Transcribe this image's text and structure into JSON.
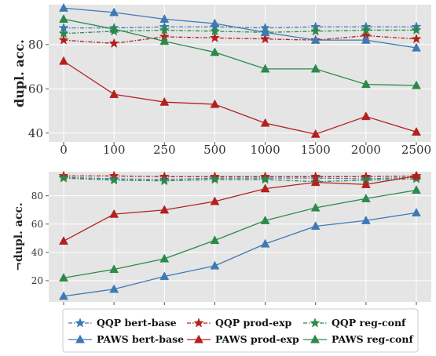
{
  "chart_data": [
    {
      "type": "line",
      "ylabel": "dupl. acc.",
      "categories": [
        "0",
        "100",
        "250",
        "500",
        "1000",
        "1500",
        "2000",
        "2500"
      ],
      "ylim": [
        36,
        98
      ],
      "yticks": [
        40,
        60,
        80
      ],
      "grid": true,
      "series": [
        {
          "name": "QQP bert-base",
          "color": "#3d7ab5",
          "marker": "star",
          "dashed": true,
          "values": [
            87.5,
            87.5,
            88,
            88,
            87.5,
            88,
            88,
            88
          ]
        },
        {
          "name": "QQP prod-exp",
          "color": "#b3211e",
          "marker": "star",
          "dashed": true,
          "values": [
            82,
            80.5,
            83.5,
            83,
            82.5,
            82,
            84,
            82.5
          ]
        },
        {
          "name": "QQP reg-conf",
          "color": "#2b8a4a",
          "marker": "star",
          "dashed": true,
          "values": [
            85,
            86,
            86.5,
            86,
            85.5,
            86,
            86.5,
            86.5
          ]
        },
        {
          "name": "PAWS bert-base",
          "color": "#3d7ab5",
          "marker": "triangle",
          "dashed": false,
          "values": [
            96.5,
            94.5,
            91.5,
            89.5,
            85.5,
            82,
            82,
            78.5
          ]
        },
        {
          "name": "PAWS prod-exp",
          "color": "#b3211e",
          "marker": "triangle",
          "dashed": false,
          "values": [
            72.5,
            57.5,
            54,
            53,
            44.5,
            39.5,
            47.5,
            40.5
          ]
        },
        {
          "name": "PAWS reg-conf",
          "color": "#2b8a4a",
          "marker": "triangle",
          "dashed": false,
          "values": [
            91.5,
            87,
            81.5,
            76.5,
            69,
            69,
            62,
            61.5
          ]
        }
      ]
    },
    {
      "type": "line",
      "ylabel": "¬dupl. acc.",
      "categories": [
        "0",
        "100",
        "250",
        "500",
        "1000",
        "1500",
        "2000",
        "2500"
      ],
      "ylim": [
        5,
        97
      ],
      "yticks": [
        20,
        40,
        60,
        80
      ],
      "grid": true,
      "series": [
        {
          "name": "QQP bert-base",
          "color": "#3d7ab5",
          "marker": "star",
          "dashed": true,
          "values": [
            93,
            92,
            91.5,
            92.5,
            92.5,
            92.5,
            92,
            93
          ]
        },
        {
          "name": "QQP prod-exp",
          "color": "#b3211e",
          "marker": "star",
          "dashed": true,
          "values": [
            94,
            94,
            93.5,
            93.5,
            93.5,
            93.5,
            93.5,
            94
          ]
        },
        {
          "name": "QQP reg-conf",
          "color": "#2b8a4a",
          "marker": "star",
          "dashed": true,
          "values": [
            92.5,
            91,
            90.5,
            91.5,
            91.5,
            90,
            91,
            92
          ]
        },
        {
          "name": "PAWS bert-base",
          "color": "#3d7ab5",
          "marker": "triangle",
          "dashed": false,
          "values": [
            9,
            14,
            23,
            30.5,
            46,
            58.5,
            62.5,
            68
          ]
        },
        {
          "name": "PAWS prod-exp",
          "color": "#b3211e",
          "marker": "triangle",
          "dashed": false,
          "values": [
            48,
            67,
            70,
            76,
            85,
            89.5,
            88,
            94
          ]
        },
        {
          "name": "PAWS reg-conf",
          "color": "#2b8a4a",
          "marker": "triangle",
          "dashed": false,
          "values": [
            22,
            28,
            35.5,
            48.5,
            62.5,
            71.5,
            78,
            84
          ]
        }
      ]
    }
  ],
  "legend": {
    "entries": [
      "QQP bert-base",
      "QQP prod-exp",
      "QQP reg-conf",
      "PAWS bert-base",
      "PAWS prod-exp",
      "PAWS reg-conf"
    ]
  }
}
